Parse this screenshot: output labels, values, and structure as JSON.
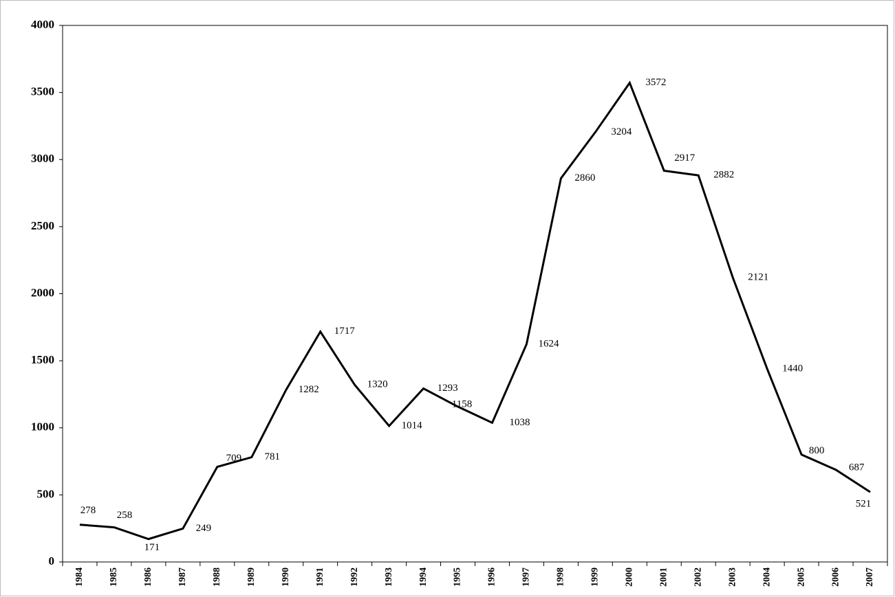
{
  "chart_data": {
    "type": "line",
    "categories": [
      "1984",
      "1985",
      "1986",
      "1987",
      "1988",
      "1989",
      "1990",
      "1991",
      "1992",
      "1993",
      "1994",
      "1995",
      "1996",
      "1997",
      "1998",
      "1999",
      "2000",
      "2001",
      "2002",
      "2003",
      "2004",
      "2005",
      "2006",
      "2007"
    ],
    "values": [
      278,
      258,
      171,
      249,
      709,
      781,
      1282,
      1717,
      1320,
      1014,
      1293,
      1158,
      1038,
      1624,
      2860,
      3204,
      3572,
      2917,
      2882,
      2121,
      1440,
      800,
      687,
      521
    ],
    "color": "#000000",
    "ylim": [
      0,
      4000
    ],
    "yticks": [
      0,
      500,
      1000,
      1500,
      2000,
      2500,
      3000,
      3500,
      4000
    ],
    "grid": false
  }
}
